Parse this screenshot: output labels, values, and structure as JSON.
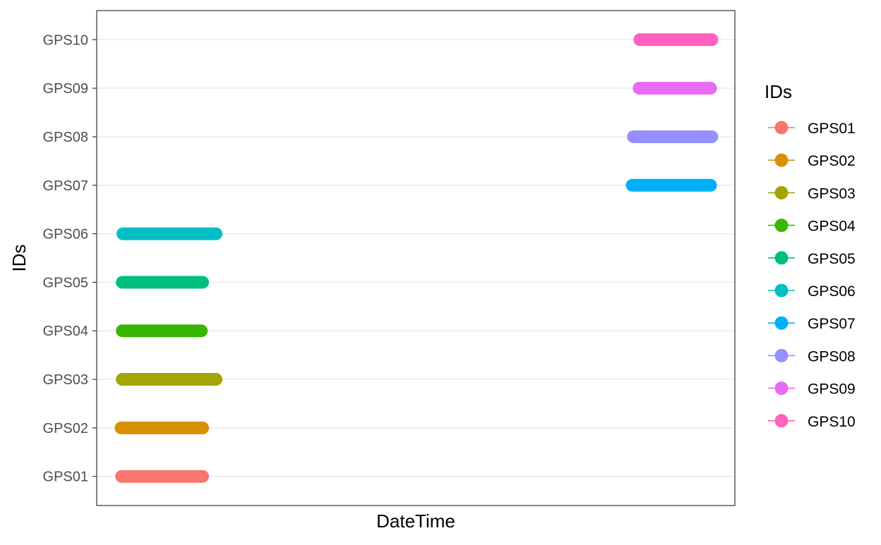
{
  "chart_data": {
    "type": "line",
    "title": "",
    "xlabel": "DateTime",
    "ylabel": "IDs",
    "grid": "horizontal major gridlines only",
    "x_axis": "DateTime with no tick labels shown",
    "legend": {
      "title": "IDs",
      "placement": "right"
    },
    "categories": [
      "GPS01",
      "GPS02",
      "GPS03",
      "GPS04",
      "GPS05",
      "GPS06",
      "GPS07",
      "GPS08",
      "GPS09",
      "GPS10"
    ],
    "xlim": [
      0,
      1
    ],
    "x_units": "relative time (DateTime range, unlabeled)",
    "series": [
      {
        "name": "GPS01",
        "x": [
          0.039,
          0.166
        ],
        "color": "#F8766D"
      },
      {
        "name": "GPS02",
        "x": [
          0.038,
          0.166
        ],
        "color": "#D89000"
      },
      {
        "name": "GPS03",
        "x": [
          0.04,
          0.187
        ],
        "color": "#A3A500"
      },
      {
        "name": "GPS04",
        "x": [
          0.04,
          0.164
        ],
        "color": "#39B600"
      },
      {
        "name": "GPS05",
        "x": [
          0.04,
          0.166
        ],
        "color": "#00BF7D"
      },
      {
        "name": "GPS06",
        "x": [
          0.041,
          0.187
        ],
        "color": "#00BFC4"
      },
      {
        "name": "GPS07",
        "x": [
          0.839,
          0.962
        ],
        "color": "#00B0F6"
      },
      {
        "name": "GPS08",
        "x": [
          0.841,
          0.964
        ],
        "color": "#9590FF"
      },
      {
        "name": "GPS09",
        "x": [
          0.85,
          0.962
        ],
        "color": "#E76BF3"
      },
      {
        "name": "GPS10",
        "x": [
          0.851,
          0.964
        ],
        "color": "#FF62BC"
      }
    ]
  }
}
